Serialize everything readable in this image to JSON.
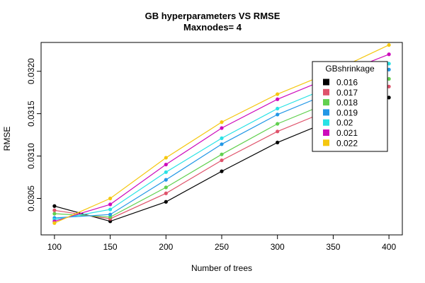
{
  "chart_data": {
    "type": "line",
    "title": "GB hyperparameters VS RMSE",
    "subtitle": "Maxnodes= 4",
    "xlabel": "Number of trees",
    "ylabel": "RMSE",
    "x": [
      100,
      150,
      200,
      250,
      300,
      350,
      400
    ],
    "x_ticks": [
      "100",
      "150",
      "200",
      "250",
      "300",
      "350",
      "400"
    ],
    "y_ticks": [
      {
        "value": 0.0305,
        "label": "0.0305"
      },
      {
        "value": 0.031,
        "label": "0.0310"
      },
      {
        "value": 0.0315,
        "label": "0.0315"
      },
      {
        "value": 0.032,
        "label": "0.0320"
      }
    ],
    "xlim": [
      88,
      412
    ],
    "ylim": [
      0.03007,
      0.03234
    ],
    "grid": false,
    "legend": {
      "title": "GBshrinkage",
      "position": "top-right"
    },
    "series": [
      {
        "name": "0.016",
        "color": "#000000",
        "values": [
          0.03041,
          0.03023,
          0.03046,
          0.03082,
          0.03116,
          0.03143,
          0.03169
        ]
      },
      {
        "name": "0.017",
        "color": "#DF536B",
        "values": [
          0.03036,
          0.03026,
          0.03056,
          0.03095,
          0.03129,
          0.03156,
          0.03182
        ]
      },
      {
        "name": "0.018",
        "color": "#61D04F",
        "values": [
          0.03032,
          0.03028,
          0.03063,
          0.03102,
          0.03138,
          0.03165,
          0.03191
        ]
      },
      {
        "name": "0.019",
        "color": "#2297E6",
        "values": [
          0.03027,
          0.03031,
          0.03072,
          0.03114,
          0.03149,
          0.03176,
          0.03202
        ]
      },
      {
        "name": "0.02",
        "color": "#28E2E5",
        "values": [
          0.03025,
          0.03037,
          0.03081,
          0.03121,
          0.03156,
          0.03183,
          0.03209
        ]
      },
      {
        "name": "0.021",
        "color": "#CD0BBC",
        "values": [
          0.03023,
          0.03043,
          0.0309,
          0.03133,
          0.03167,
          0.03194,
          0.0322
        ]
      },
      {
        "name": "0.022",
        "color": "#F5C710",
        "values": [
          0.03021,
          0.0305,
          0.03098,
          0.0314,
          0.03173,
          0.032,
          0.03231
        ]
      }
    ]
  }
}
